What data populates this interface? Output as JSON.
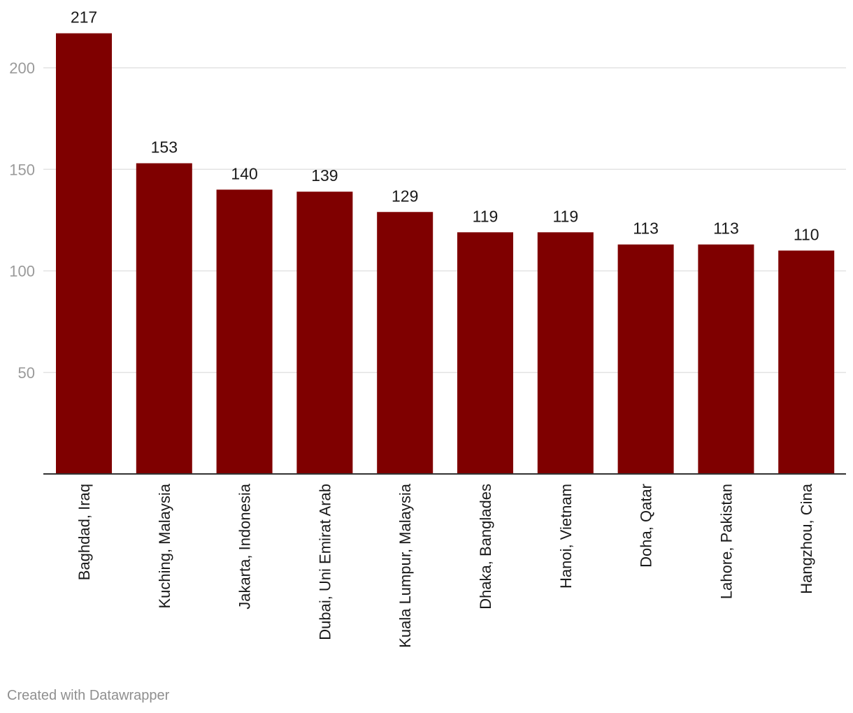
{
  "chart_data": {
    "type": "bar",
    "categories": [
      "Baghdad, Iraq",
      "Kuching, Malaysia",
      "Jakarta, Indonesia",
      "Dubai, Uni Emirat Arab",
      "Kuala Lumpur, Malaysia",
      "Dhaka, Banglades",
      "Hanoi, Vietnam",
      "Doha, Qatar",
      "Lahore, Pakistan",
      "Hangzhou, Cina"
    ],
    "values": [
      217,
      153,
      140,
      139,
      129,
      119,
      119,
      113,
      113,
      110
    ],
    "value_labels": [
      "217",
      "153",
      "140",
      "139",
      "129",
      "119",
      "119",
      "113",
      "113",
      "110"
    ],
    "ylim": [
      0,
      217
    ],
    "yticks": [
      50,
      100,
      150,
      200
    ],
    "ytick_labels": [
      "50",
      "100",
      "150",
      "200"
    ],
    "grid": true,
    "bar_color": "#7f0000",
    "xlabel": "",
    "ylabel": ""
  },
  "footer": {
    "credit": "Created with Datawrapper"
  }
}
